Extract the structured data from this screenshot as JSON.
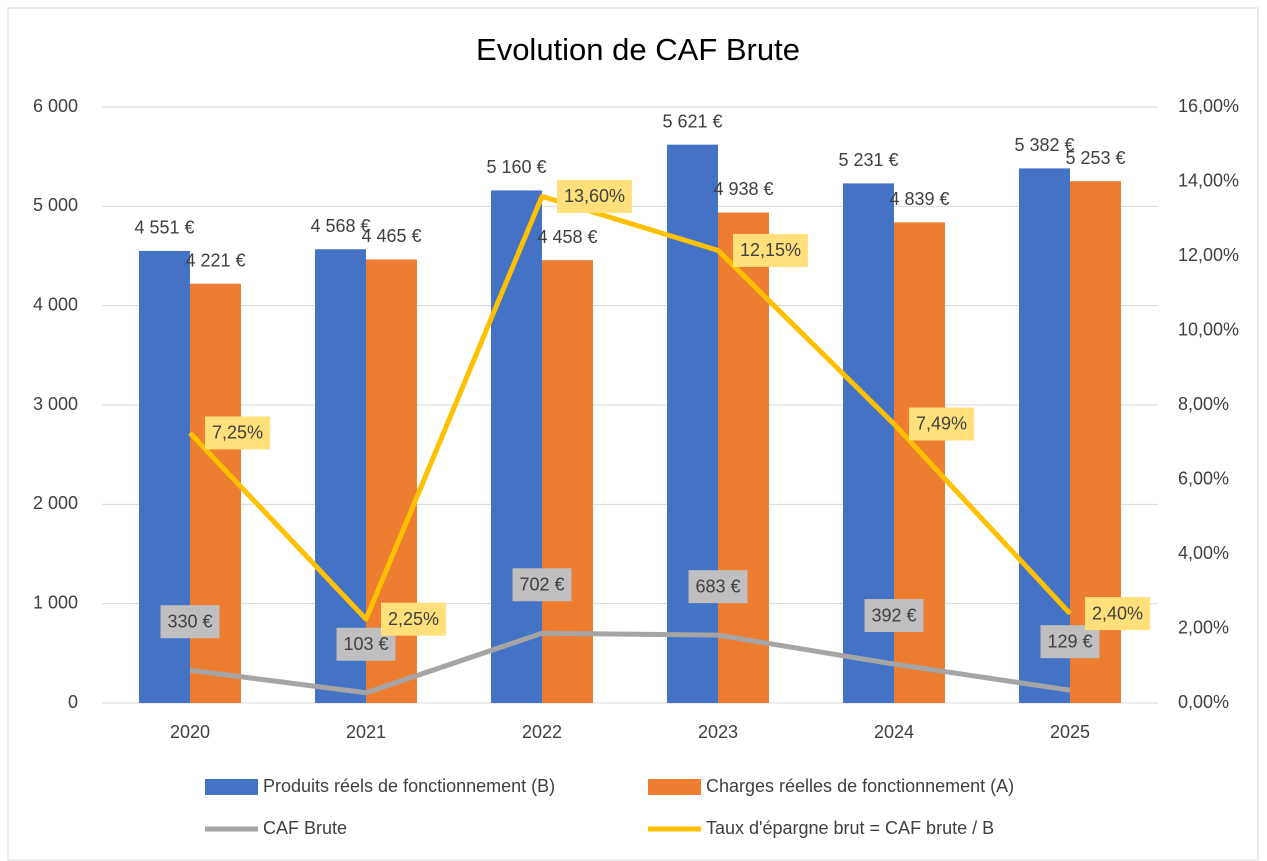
{
  "chart_data": {
    "type": "bar",
    "title": "Evolution de CAF Brute",
    "categories": [
      "2020",
      "2021",
      "2022",
      "2023",
      "2024",
      "2025"
    ],
    "series": [
      {
        "name": "Produits réels de fonctionnement (B)",
        "type": "bar",
        "color": "#4472c4",
        "values": [
          4551,
          4568,
          5160,
          5621,
          5231,
          5382
        ],
        "value_labels": [
          "4 551 €",
          "4 568 €",
          "5 160 €",
          "5 621 €",
          "5 231 €",
          "5 382 €"
        ]
      },
      {
        "name": "Charges réelles de fonctionnement (A)",
        "type": "bar",
        "color": "#ed7d31",
        "values": [
          4221,
          4465,
          4458,
          4938,
          4839,
          5253
        ],
        "value_labels": [
          "4 221 €",
          "4 465 €",
          "4 458 €",
          "4 938 €",
          "4 839 €",
          "5 253 €"
        ]
      },
      {
        "name": "CAF Brute",
        "type": "line",
        "color": "#a5a5a5",
        "label_color": "#bfbfbf",
        "values": [
          330,
          103,
          702,
          683,
          392,
          129
        ],
        "value_labels": [
          "330 €",
          "103 €",
          "702 €",
          "683 €",
          "392 €",
          "129 €"
        ]
      },
      {
        "name": "Taux d'épargne brut = CAF brute / B",
        "type": "line",
        "axis": "y2",
        "color": "#ffc000",
        "label_color": "#ffe07a",
        "values": [
          7.25,
          2.25,
          13.6,
          12.15,
          7.49,
          2.4
        ],
        "value_labels": [
          "7,25%",
          "2,25%",
          "13,60%",
          "12,15%",
          "7,49%",
          "2,40%"
        ]
      }
    ],
    "ylim": [
      0,
      6000
    ],
    "yticks": [
      0,
      {
        "value": 1000,
        "label": "1 000"
      },
      {
        "value": 2000,
        "label": "2 000"
      },
      {
        "value": 3000,
        "label": "3 000"
      },
      {
        "value": 4000,
        "label": "4 000"
      },
      {
        "value": 5000,
        "label": "5 000"
      },
      {
        "value": 6000,
        "label": "6 000"
      }
    ],
    "y2lim": [
      0,
      16
    ],
    "y2ticks": [
      {
        "value": 0,
        "label": "0,00%"
      },
      {
        "value": 2,
        "label": "2,00%"
      },
      {
        "value": 4,
        "label": "4,00%"
      },
      {
        "value": 6,
        "label": "6,00%"
      },
      {
        "value": 8,
        "label": "8,00%"
      },
      {
        "value": 10,
        "label": "10,00%"
      },
      {
        "value": 12,
        "label": "12,00%"
      },
      {
        "value": 14,
        "label": "14,00%"
      },
      {
        "value": 16,
        "label": "16,00%"
      }
    ],
    "grid": true,
    "legend": "bottom"
  }
}
